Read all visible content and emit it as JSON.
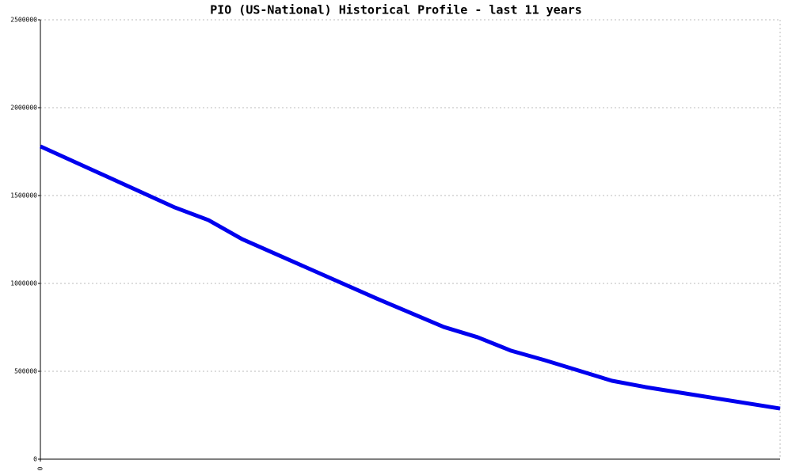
{
  "chart_data": {
    "type": "line",
    "title": "PIO (US-National) Historical Profile - last 11 years",
    "x": [
      0,
      2,
      2.5,
      3,
      5,
      5.5,
      6,
      6.5,
      7,
      7.5,
      8.5,
      9,
      11
    ],
    "series": [
      {
        "color": "#0000ee",
        "values": [
          1780000,
          1432000,
          1360000,
          1252000,
          914000,
          833000,
          752000,
          694000,
          617000,
          563000,
          446000,
          410000,
          288000
        ]
      }
    ],
    "xlim": [
      0,
      11
    ],
    "xticks": [
      0
    ],
    "ylim": [
      0,
      2500000
    ],
    "yticks": [
      0,
      500000,
      1000000,
      1500000,
      2000000,
      2500000
    ],
    "grid": true
  }
}
